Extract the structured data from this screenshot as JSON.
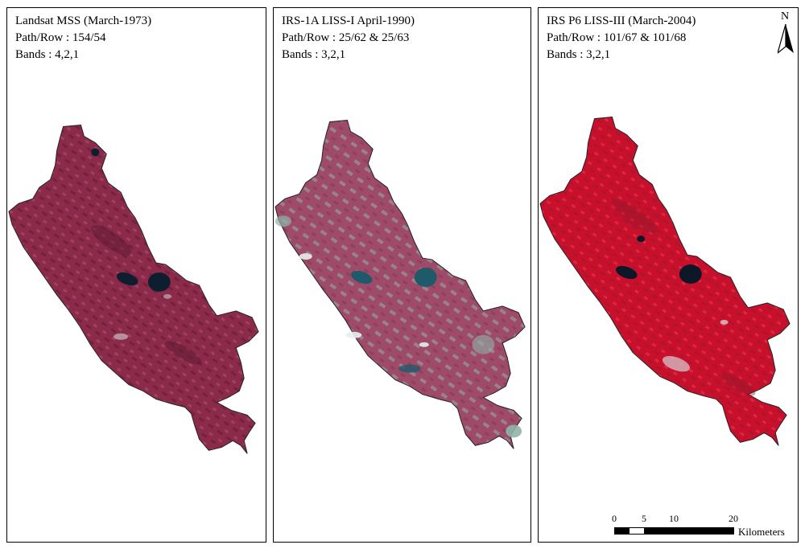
{
  "panels": [
    {
      "title": "Landsat MSS (March-1973)",
      "path_row": "Path/Row : 154/54",
      "bands": "Bands : 4,2,1",
      "colors": {
        "base": "#8c2a4a",
        "dark": "#5e1a34",
        "light": "#b0587a",
        "water": "#0d1e2e",
        "accent": "#c6c0c4"
      }
    },
    {
      "title": "IRS-1A LISS-I April-1990)",
      "path_row": "Path/Row : 25/62 & 25/63",
      "bands": "Bands : 3,2,1",
      "colors": {
        "base": "#9e4a68",
        "dark": "#7a3850",
        "light": "#8fb3aa",
        "water": "#1f5a6a",
        "accent": "#e6f0ef"
      }
    },
    {
      "title": "IRS P6 LISS-III (March-2004)",
      "path_row": "Path/Row : 101/67 & 101/68",
      "bands": "Bands : 3,2,1",
      "colors": {
        "base": "#c8102c",
        "dark": "#8e1a2e",
        "light": "#e23a52",
        "water": "#0c1828",
        "accent": "#d4b8c0"
      }
    }
  ],
  "north_arrow": {
    "label": "N"
  },
  "scale_bar": {
    "ticks": [
      "0",
      "5",
      "10",
      "20"
    ],
    "units": "Kilometers"
  }
}
